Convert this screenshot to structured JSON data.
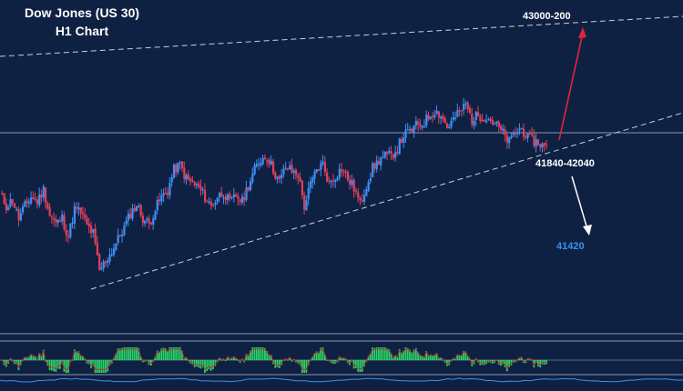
{
  "title": "Dow Jones (US 30)",
  "subtitle": "H1 Chart",
  "colors": {
    "background": "#0f2142",
    "bullish": "#3d8ff5",
    "bearish": "#e0405a",
    "up_arrow": "#e0263a",
    "down_arrow": "#ffffff",
    "target_label": "#3d8ff5",
    "histogram": "#2bd466"
  },
  "chart_data": {
    "type": "candlestick",
    "title": "Dow Jones (US 30)",
    "subtitle": "H1 Chart",
    "ylim": [
      41100,
      43200
    ],
    "grid": false,
    "close_path": [
      41980,
      41900,
      41940,
      41820,
      41900,
      41960,
      41930,
      42010,
      41840,
      41780,
      41820,
      41700,
      41880,
      41860,
      41770,
      41720,
      41470,
      41540,
      41600,
      41680,
      41760,
      41850,
      41910,
      41820,
      41780,
      41880,
      41960,
      42000,
      42140,
      42170,
      42080,
      42050,
      42020,
      41960,
      41900,
      41960,
      41990,
      41920,
      41970,
      41930,
      42040,
      42140,
      42210,
      42230,
      42140,
      42060,
      42160,
      42130,
      42110,
      41900,
      42040,
      42140,
      42180,
      42050,
      42100,
      42150,
      42080,
      42020,
      41910,
      42040,
      42150,
      42200,
      42230,
      42230,
      42280,
      42370,
      42390,
      42430,
      42440,
      42490,
      42530,
      42500,
      42420,
      42470,
      42520,
      42570,
      42470,
      42500,
      42490,
      42470,
      42430,
      42380,
      42320,
      42390,
      42410,
      42350,
      42330,
      42310,
      42280
    ],
    "levels": [
      {
        "label": "43000-200",
        "type": "upside target"
      },
      {
        "label": "41840-42040",
        "type": "support zone"
      },
      {
        "label": "41420",
        "type": "downside target"
      }
    ],
    "lower_panel": {
      "type": "histogram",
      "indicator": "oscillator"
    }
  }
}
